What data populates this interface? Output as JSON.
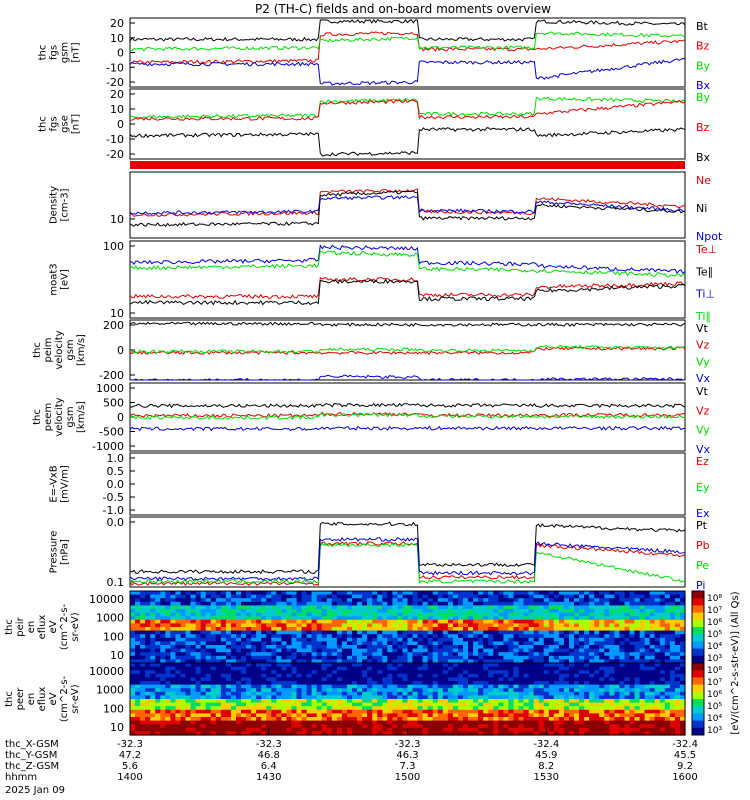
{
  "title": "P2 (TH-C) fields and on-board moments overview",
  "colors": {
    "black": "#000000",
    "red": "#e00000",
    "green": "#00dd00",
    "blue": "#0000dd"
  },
  "chart_data": {
    "type": "line",
    "x_ticks": [
      "1400",
      "1430",
      "1500",
      "1530",
      "1600"
    ],
    "orbit_rows": [
      {
        "label": "thc_X-GSM",
        "values": [
          "-32.3",
          "-32.3",
          "-32.3",
          "-32.4",
          "-32.4"
        ]
      },
      {
        "label": "thc_Y-GSM",
        "values": [
          "47.2",
          "46.8",
          "46.3",
          "45.9",
          "45.5"
        ]
      },
      {
        "label": "thc_Z-GSM",
        "values": [
          "5.6",
          "6.4",
          "7.3",
          "8.2",
          "9.2"
        ]
      },
      {
        "label": "hhmm",
        "values": [
          "1400",
          "1430",
          "1500",
          "1530",
          "1600"
        ]
      }
    ],
    "date_label": "2025 Jan 09",
    "panels": [
      {
        "id": "fgs_gsm",
        "ylabel": [
          "thc",
          "fgs",
          "gsm",
          "[nT]"
        ],
        "yticks": [
          "20",
          "10",
          "0",
          "-10",
          "-20"
        ],
        "ylim": [
          -20,
          22
        ],
        "series": [
          {
            "name": "Bt",
            "color": "black",
            "levels": [
              9,
              9,
              20,
              20,
              9,
              9,
              20,
              18
            ]
          },
          {
            "name": "Bz",
            "color": "red",
            "levels": [
              -5,
              -4,
              12,
              13,
              3,
              3,
              3,
              8
            ]
          },
          {
            "name": "By",
            "color": "green",
            "levels": [
              3,
              4,
              8,
              10,
              4,
              4,
              13,
              11
            ]
          },
          {
            "name": "Bx",
            "color": "blue",
            "levels": [
              -6,
              -6,
              -18,
              -17,
              -5,
              -5,
              -15,
              -3
            ]
          }
        ]
      },
      {
        "id": "fgs_gse",
        "ylabel": [
          "thc",
          "fgs",
          "gse",
          "[nT]"
        ],
        "yticks": [
          "20",
          "10",
          "0",
          "-10",
          "-20"
        ],
        "ylim": [
          -25,
          20
        ],
        "series": [
          {
            "name": "By",
            "color": "green",
            "levels": [
              2,
              3,
              12,
              13,
              4,
              4,
              14,
              12
            ]
          },
          {
            "name": "Bz",
            "color": "red",
            "levels": [
              1,
              1,
              11,
              12,
              2,
              2,
              4,
              12
            ]
          },
          {
            "name": "Bx",
            "color": "black",
            "levels": [
              -10,
              -9,
              -22,
              -21,
              -6,
              -6,
              -10,
              -6
            ]
          }
        ]
      },
      {
        "id": "density",
        "ylabel": [
          "Density",
          "[cm-3]"
        ],
        "yticks": [
          "10"
        ],
        "ylim": [
          0,
          1
        ],
        "series": [
          {
            "name": "Ne",
            "color": "red",
            "levels": [
              0.35,
              0.38,
              0.7,
              0.72,
              0.4,
              0.38,
              0.6,
              0.48
            ]
          },
          {
            "name": "Ni",
            "color": "black",
            "levels": [
              0.2,
              0.22,
              0.65,
              0.7,
              0.3,
              0.3,
              0.5,
              0.4
            ]
          },
          {
            "name": "Npot",
            "color": "blue",
            "levels": [
              0.38,
              0.4,
              0.6,
              0.62,
              0.42,
              0.4,
              0.55,
              0.42
            ]
          }
        ]
      },
      {
        "id": "moat3",
        "ylabel": [
          "moat3",
          "[eV]"
        ],
        "yticks": [
          "100",
          "10"
        ],
        "ylim": [
          0,
          1
        ],
        "series": [
          {
            "name": "Te⊥",
            "color": "red",
            "levels": [
              0.28,
              0.28,
              0.5,
              0.5,
              0.3,
              0.3,
              0.4,
              0.45
            ]
          },
          {
            "name": "Te∥",
            "color": "black",
            "levels": [
              0.2,
              0.2,
              0.47,
              0.48,
              0.25,
              0.25,
              0.35,
              0.42
            ]
          },
          {
            "name": "Ti⊥",
            "color": "blue",
            "levels": [
              0.72,
              0.75,
              0.92,
              0.9,
              0.72,
              0.7,
              0.68,
              0.6
            ]
          },
          {
            "name": "Ti∥",
            "color": "green",
            "levels": [
              0.65,
              0.68,
              0.85,
              0.82,
              0.64,
              0.62,
              0.62,
              0.55
            ]
          }
        ]
      },
      {
        "id": "peim_velocity",
        "ylabel": [
          "thc",
          "peim",
          "velocity",
          "gsm",
          "[km/s]"
        ],
        "yticks": [
          "200",
          "0",
          "-200"
        ],
        "ylim": [
          -300,
          350
        ],
        "series": [
          {
            "name": "Vt",
            "color": "black",
            "levels": [
              310,
              310,
              300,
              300,
              300,
              300,
              300,
              300
            ]
          },
          {
            "name": "Vz",
            "color": "red",
            "levels": [
              -5,
              -5,
              -5,
              -5,
              -5,
              -5,
              40,
              40
            ]
          },
          {
            "name": "Vy",
            "color": "green",
            "levels": [
              10,
              10,
              30,
              30,
              20,
              20,
              60,
              50
            ]
          },
          {
            "name": "Vx",
            "color": "blue",
            "levels": [
              -300,
              -300,
              -260,
              -270,
              -300,
              -300,
              -290,
              -290
            ]
          }
        ]
      },
      {
        "id": "peem_velocity",
        "ylabel": [
          "thc",
          "peem",
          "velocity",
          "gsm",
          "[km/s]"
        ],
        "yticks": [
          "1000",
          "500",
          "0",
          "-500",
          "-1000"
        ],
        "ylim": [
          -1000,
          1000
        ],
        "series": [
          {
            "name": "Vt",
            "color": "black",
            "levels": [
              330,
              330,
              350,
              350,
              340,
              340,
              330,
              330
            ]
          },
          {
            "name": "Vz",
            "color": "red",
            "levels": [
              40,
              40,
              90,
              90,
              50,
              50,
              60,
              60
            ]
          },
          {
            "name": "Vy",
            "color": "green",
            "levels": [
              -20,
              -20,
              60,
              60,
              20,
              20,
              10,
              10
            ]
          },
          {
            "name": "Vx",
            "color": "blue",
            "levels": [
              -350,
              -350,
              -330,
              -330,
              -330,
              -330,
              -330,
              -330
            ]
          }
        ]
      },
      {
        "id": "e_vxb",
        "ylabel": [
          "E=-VxB",
          "[mV/m]"
        ],
        "yticks": [
          "1.0",
          "0.5",
          "0.0",
          "-0.5",
          "-1.0"
        ],
        "ylim": [
          -1,
          1
        ],
        "series": [
          {
            "name": "Ez",
            "color": "red",
            "levels": []
          },
          {
            "name": "Ey",
            "color": "green",
            "levels": []
          },
          {
            "name": "Ex",
            "color": "blue",
            "levels": []
          }
        ]
      },
      {
        "id": "pressure",
        "ylabel": [
          "Pressure",
          "[nPa]"
        ],
        "yticks": [
          "0.0",
          "0.1"
        ],
        "ylim": [
          0,
          1
        ],
        "series": [
          {
            "name": "Pt",
            "color": "black",
            "levels": [
              0.22,
              0.22,
              0.9,
              0.9,
              0.32,
              0.32,
              0.88,
              0.8
            ]
          },
          {
            "name": "Pb",
            "color": "red",
            "levels": [
              0.05,
              0.05,
              0.62,
              0.62,
              0.14,
              0.14,
              0.6,
              0.45
            ]
          },
          {
            "name": "Pe",
            "color": "green",
            "levels": [
              0.08,
              0.08,
              0.6,
              0.6,
              0.08,
              0.08,
              0.5,
              0.08
            ]
          },
          {
            "name": "Pi",
            "color": "blue",
            "levels": [
              0.12,
              0.12,
              0.68,
              0.68,
              0.2,
              0.2,
              0.62,
              0.5
            ]
          }
        ]
      }
    ],
    "spectrograms": [
      {
        "id": "peir",
        "ylabel": [
          "thc",
          "peir",
          "en",
          "eflux",
          "eV",
          "(cm^2-s-",
          "sr-eV)"
        ],
        "yticks": [
          "10000",
          "1000",
          "100",
          "10"
        ]
      },
      {
        "id": "peer",
        "ylabel": [
          "thc",
          "peer",
          "en",
          "eflux",
          "eV",
          "(cm^2-s-",
          "sr-eV)"
        ],
        "yticks": [
          "10000",
          "1000",
          "100",
          "10"
        ]
      }
    ],
    "colorbar": {
      "label": "[eV/(cm^2-s-str-eV)] (All Qs)",
      "ticks": [
        "10⁸",
        "10⁷",
        "10⁶",
        "10⁵",
        "10⁴",
        "10³"
      ]
    }
  }
}
